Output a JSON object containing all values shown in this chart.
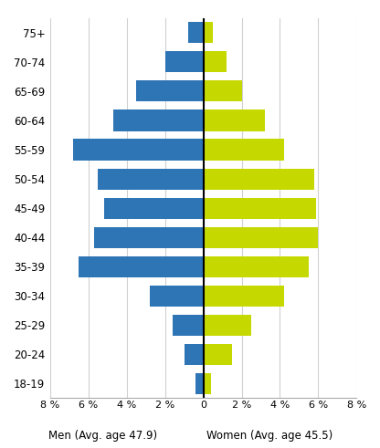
{
  "age_groups": [
    "18-19",
    "20-24",
    "25-29",
    "30-34",
    "35-39",
    "40-44",
    "45-49",
    "50-54",
    "55-59",
    "60-64",
    "65-69",
    "70-74",
    "75+"
  ],
  "men_values": [
    0.4,
    1.0,
    1.6,
    2.8,
    6.5,
    5.7,
    5.2,
    5.5,
    6.8,
    4.7,
    3.5,
    2.0,
    0.8
  ],
  "women_values": [
    0.4,
    1.5,
    2.5,
    4.2,
    5.5,
    6.0,
    5.9,
    5.8,
    4.2,
    3.2,
    2.0,
    1.2,
    0.5
  ],
  "men_color": "#2e75b6",
  "women_color": "#c5d900",
  "men_label": "Men (Avg. age 47.9)",
  "women_label": "Women (Avg. age 45.5)",
  "xlim": 8,
  "background_color": "#ffffff",
  "grid_color": "#d0d0d0",
  "bar_height": 0.72,
  "tick_positions": [
    -8,
    -6,
    -4,
    -2,
    0,
    2,
    4,
    6,
    8
  ],
  "tick_labels": [
    "8 %",
    "6 %",
    "4 %",
    "2 %",
    "0",
    "2 %",
    "4 %",
    "6 %",
    "8 %"
  ]
}
